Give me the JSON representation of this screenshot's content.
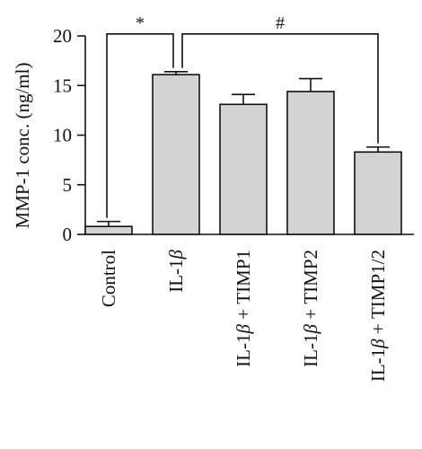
{
  "chart_data": {
    "type": "bar",
    "title": "",
    "xlabel": "",
    "ylabel": "MMP-1 conc. (ng/ml)",
    "ylim": [
      0,
      20
    ],
    "yticks": [
      0,
      5,
      10,
      15,
      20
    ],
    "grid": false,
    "bar_color": "#d3d3d3",
    "categories": [
      {
        "label": "Control",
        "plain": "Control"
      },
      {
        "label": "IL-1β",
        "plain": "IL-1",
        "beta": "β",
        "suffix": ""
      },
      {
        "label": "IL-1β + TIMP1",
        "plain": "IL-1",
        "beta": "β",
        "suffix": " + TIMP1"
      },
      {
        "label": "IL-1β + TIMP2",
        "plain": "IL-1",
        "beta": "β",
        "suffix": " + TIMP2"
      },
      {
        "label": "IL-1β + TIMP1/2",
        "plain": "IL-1",
        "beta": "β",
        "suffix": " + TIMP1/2"
      }
    ],
    "values": [
      0.8,
      16.1,
      13.1,
      14.4,
      8.3
    ],
    "errors": [
      0.5,
      0.3,
      1.0,
      1.3,
      0.5
    ],
    "annotations": [
      {
        "label": "*",
        "from": 0,
        "to": 1,
        "y": 20.2
      },
      {
        "label": "#",
        "from": 1,
        "to": 4,
        "y": 20.2
      }
    ]
  }
}
